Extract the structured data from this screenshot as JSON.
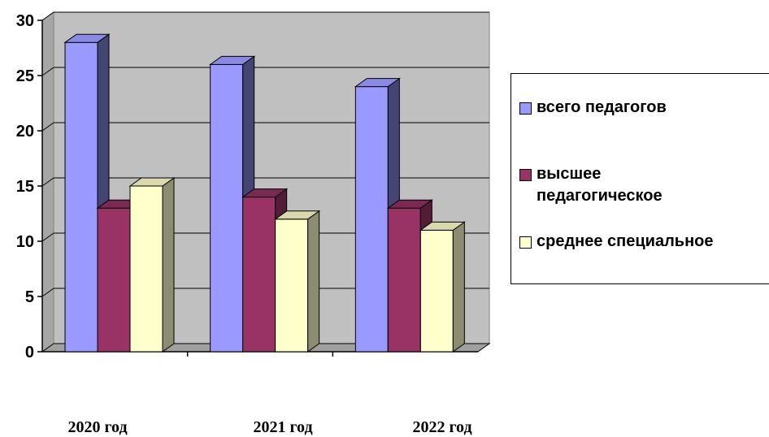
{
  "chart_data": {
    "type": "bar",
    "categories": [
      "2020 год",
      "2021 год",
      "2022 год"
    ],
    "series": [
      {
        "name": "всего педагогов",
        "values": [
          28,
          26,
          24
        ],
        "color": "#9999FF"
      },
      {
        "name": "высшее педагогическое",
        "values": [
          13,
          14,
          13
        ],
        "color": "#993366"
      },
      {
        "name": "среднее специальное",
        "values": [
          15,
          12,
          11
        ],
        "color": "#FFFFCC"
      }
    ],
    "title": "",
    "xlabel": "",
    "ylabel": "",
    "ylim": [
      0,
      30
    ],
    "yticks": [
      "0",
      "5",
      "10",
      "15",
      "20",
      "25",
      "30"
    ],
    "grid": true,
    "legend_position": "right",
    "style": "3d-clustered-column",
    "wall_color": "#C0C0C0"
  }
}
